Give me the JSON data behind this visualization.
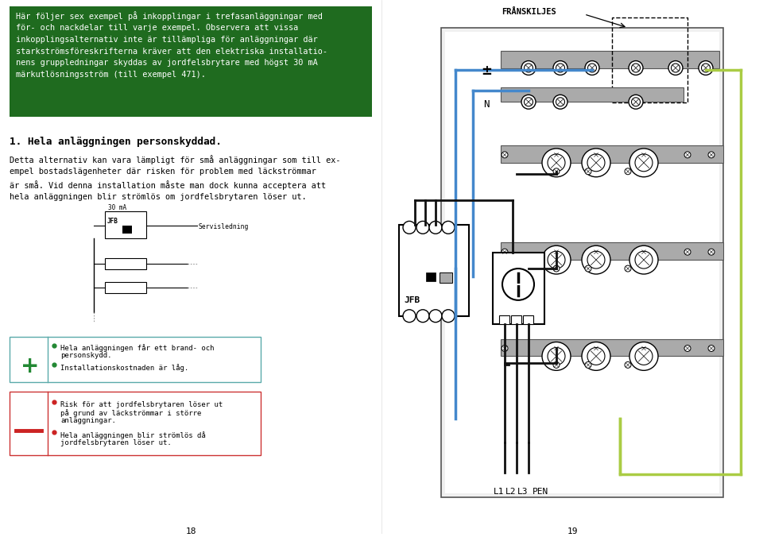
{
  "bg_color": "#ffffff",
  "green_box_color": "#1f6b1f",
  "green_box_text_color": "#ffffff",
  "green_box_text": "Här följer sex exempel på inkopplingar i trefasanläggningar med\nför- och nackdelar till varje exempel. Observera att vissa\ninkopplingsalternativ inte är tillämpliga för anläggningar där\nstarkströmsföreskrifterna kräver att den elektriska installatio-\nnens gruppledningar skyddas av jordfelsbrytare med högst 30 mA\nmärkutlösningsström (till exempel 471).",
  "heading": "1. Hela anläggningen personskyddad.",
  "body_text": "Detta alternativ kan vara lämpligt för små anläggningar som till ex-\nempel bostadslägenheter där risken för problem med läckströmmar\när små. Vid denna installation måste man dock kunna acceptera att\nhela anläggningen blir strömlös om jordfelsbrytaren löser ut.",
  "page_num_left": "18",
  "page_num_right": "19",
  "fran_text": "FRÅNSKILJES",
  "label_N": "N",
  "label_JFB": "JFB",
  "label_servisledning": "Servisledning",
  "label_30mA": "30 mA",
  "plus_pros": [
    "Hela anläggningen får ett brand- och",
    "personskydd.",
    "Installationskostnaden är låg."
  ],
  "minus_cons_1": [
    "Risk för att jordfelsbrytaren löser ut",
    "på grund av läckströmmar i större",
    "anläggningar."
  ],
  "minus_cons_2": [
    "Hela anläggningen blir strömlös då",
    "jordfelsbrytaren löser ut."
  ],
  "teal_border": "#5aaaaa",
  "red_border": "#cc3333",
  "dot_green": "#228833",
  "dot_red": "#cc2222",
  "blue_wire": "#4488cc",
  "green_wire": "#aacc44",
  "black_wire": "#111111",
  "gray_rail": "#aaaaaa",
  "gray_rail_dark": "#888888"
}
